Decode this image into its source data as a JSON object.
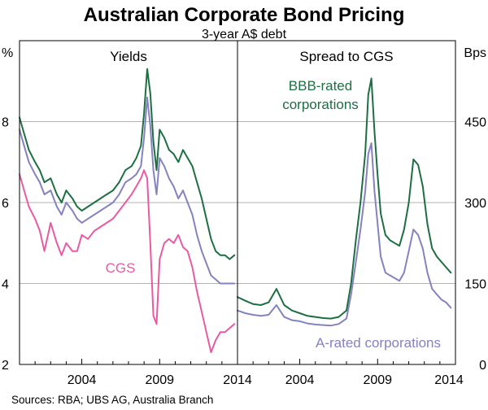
{
  "chart_data": {
    "type": "line",
    "title": "Australian Corporate Bond Pricing",
    "subtitle": "3-year A$ debt",
    "source": "Sources: RBA; UBS AG, Australia Branch",
    "x_range": [
      2000,
      2014
    ],
    "x_ticks": [
      2004,
      2009,
      2014
    ],
    "x_tick_labels": [
      "2004",
      "2009",
      "2014"
    ],
    "colors": {
      "bbb": "#1d6f42",
      "a": "#8582c0",
      "cgs": "#e85aa3"
    },
    "panels": [
      {
        "title": "Yields",
        "ylabel": "%",
        "ylim": [
          2,
          10
        ],
        "yticks": [
          2,
          4,
          6,
          8
        ],
        "series": [
          {
            "name": "BBB-rated corporations",
            "key": "bbb",
            "x": [
              2000.0,
              2000.3,
              2000.6,
              2001.0,
              2001.3,
              2001.6,
              2002.0,
              2002.4,
              2002.7,
              2003.0,
              2003.4,
              2003.7,
              2004.0,
              2004.4,
              2004.8,
              2005.2,
              2005.6,
              2006.0,
              2006.4,
              2006.8,
              2007.2,
              2007.5,
              2007.8,
              2008.0,
              2008.2,
              2008.4,
              2008.6,
              2008.8,
              2009.0,
              2009.3,
              2009.6,
              2009.9,
              2010.2,
              2010.5,
              2010.8,
              2011.1,
              2011.4,
              2011.7,
              2012.0,
              2012.3,
              2012.6,
              2012.9,
              2013.2,
              2013.5,
              2013.8
            ],
            "y": [
              8.1,
              7.7,
              7.3,
              7.0,
              6.8,
              6.5,
              6.6,
              6.2,
              6.0,
              6.3,
              6.1,
              5.9,
              5.8,
              5.9,
              6.0,
              6.1,
              6.2,
              6.3,
              6.5,
              6.8,
              6.9,
              7.1,
              7.4,
              8.2,
              9.3,
              8.7,
              7.5,
              6.8,
              7.8,
              7.6,
              7.3,
              7.2,
              7.0,
              7.3,
              7.1,
              6.9,
              6.5,
              6.1,
              5.6,
              5.1,
              4.8,
              4.7,
              4.7,
              4.6,
              4.7
            ]
          },
          {
            "name": "A-rated corporations",
            "key": "a",
            "x": [
              2000.0,
              2000.3,
              2000.6,
              2001.0,
              2001.3,
              2001.6,
              2002.0,
              2002.4,
              2002.7,
              2003.0,
              2003.4,
              2003.7,
              2004.0,
              2004.4,
              2004.8,
              2005.2,
              2005.6,
              2006.0,
              2006.4,
              2006.8,
              2007.2,
              2007.5,
              2007.8,
              2008.0,
              2008.2,
              2008.4,
              2008.6,
              2008.8,
              2009.0,
              2009.3,
              2009.6,
              2009.9,
              2010.2,
              2010.5,
              2010.8,
              2011.1,
              2011.4,
              2011.7,
              2012.0,
              2012.3,
              2012.6,
              2012.9,
              2013.2,
              2013.5,
              2013.8
            ],
            "y": [
              7.8,
              7.4,
              7.0,
              6.7,
              6.5,
              6.2,
              6.3,
              5.9,
              5.7,
              6.0,
              5.8,
              5.6,
              5.5,
              5.6,
              5.7,
              5.8,
              5.9,
              6.0,
              6.2,
              6.5,
              6.6,
              6.7,
              6.9,
              7.6,
              8.6,
              7.9,
              6.8,
              6.2,
              7.1,
              6.9,
              6.6,
              6.4,
              6.1,
              6.3,
              6.0,
              5.7,
              5.2,
              4.8,
              4.5,
              4.2,
              4.1,
              4.0,
              4.0,
              4.0,
              4.0
            ]
          },
          {
            "name": "CGS",
            "key": "cgs",
            "x": [
              2000.0,
              2000.3,
              2000.6,
              2001.0,
              2001.3,
              2001.6,
              2002.0,
              2002.4,
              2002.7,
              2003.0,
              2003.4,
              2003.7,
              2004.0,
              2004.4,
              2004.8,
              2005.2,
              2005.6,
              2006.0,
              2006.4,
              2006.8,
              2007.2,
              2007.5,
              2007.8,
              2008.0,
              2008.2,
              2008.4,
              2008.6,
              2008.8,
              2009.0,
              2009.3,
              2009.6,
              2009.9,
              2010.2,
              2010.5,
              2010.8,
              2011.1,
              2011.4,
              2011.7,
              2012.0,
              2012.3,
              2012.6,
              2012.9,
              2013.2,
              2013.5,
              2013.8
            ],
            "y": [
              6.7,
              6.3,
              5.9,
              5.6,
              5.3,
              4.8,
              5.5,
              5.0,
              4.7,
              5.0,
              4.8,
              4.8,
              5.2,
              5.1,
              5.3,
              5.4,
              5.5,
              5.6,
              5.8,
              6.0,
              6.2,
              6.4,
              6.6,
              6.8,
              6.6,
              5.0,
              3.2,
              3.0,
              4.6,
              5.0,
              5.1,
              5.0,
              5.2,
              4.9,
              4.8,
              4.4,
              3.8,
              3.3,
              2.8,
              2.3,
              2.6,
              2.8,
              2.8,
              2.9,
              3.0
            ]
          }
        ]
      },
      {
        "title": "Spread to CGS",
        "ylabel": "Bps",
        "ylim": [
          0,
          600
        ],
        "yticks": [
          0,
          150,
          300,
          450
        ],
        "series": [
          {
            "name": "BBB-rated corporations",
            "key": "bbb",
            "x": [
              2000.0,
              2000.5,
              2001.0,
              2001.5,
              2002.0,
              2002.5,
              2003.0,
              2003.5,
              2004.0,
              2004.5,
              2005.0,
              2005.5,
              2006.0,
              2006.5,
              2007.0,
              2007.3,
              2007.6,
              2007.9,
              2008.2,
              2008.4,
              2008.6,
              2008.8,
              2009.0,
              2009.2,
              2009.5,
              2009.8,
              2010.1,
              2010.4,
              2010.7,
              2011.0,
              2011.3,
              2011.6,
              2011.9,
              2012.2,
              2012.5,
              2012.8,
              2013.1,
              2013.4,
              2013.7
            ],
            "y": [
              125,
              118,
              112,
              110,
              115,
              140,
              110,
              100,
              95,
              90,
              88,
              86,
              85,
              88,
              100,
              150,
              230,
              300,
              390,
              500,
              530,
              430,
              350,
              280,
              240,
              230,
              225,
              220,
              250,
              300,
              380,
              370,
              330,
              260,
              215,
              200,
              190,
              180,
              170
            ]
          },
          {
            "name": "A-rated corporations",
            "key": "a",
            "x": [
              2000.0,
              2000.5,
              2001.0,
              2001.5,
              2002.0,
              2002.5,
              2003.0,
              2003.5,
              2004.0,
              2004.5,
              2005.0,
              2005.5,
              2006.0,
              2006.5,
              2007.0,
              2007.3,
              2007.6,
              2007.9,
              2008.2,
              2008.4,
              2008.6,
              2008.8,
              2009.0,
              2009.2,
              2009.5,
              2009.8,
              2010.1,
              2010.4,
              2010.7,
              2011.0,
              2011.3,
              2011.6,
              2011.9,
              2012.2,
              2012.5,
              2012.8,
              2013.1,
              2013.4,
              2013.7
            ],
            "y": [
              100,
              95,
              92,
              90,
              92,
              110,
              88,
              82,
              80,
              76,
              74,
              73,
              72,
              75,
              85,
              130,
              190,
              250,
              320,
              390,
              410,
              320,
              260,
              200,
              170,
              165,
              160,
              155,
              170,
              210,
              250,
              240,
              215,
              170,
              140,
              130,
              120,
              115,
              105
            ]
          }
        ]
      }
    ],
    "annotations": [
      "BBB-rated corporations",
      "A-rated corporations",
      "CGS"
    ]
  }
}
